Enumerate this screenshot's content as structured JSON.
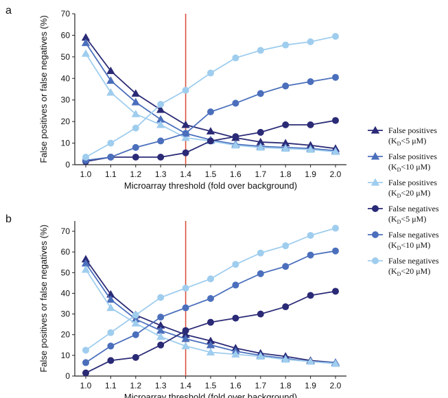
{
  "colors": {
    "dark": "#2a2a76",
    "mid": "#4b6fbc",
    "light": "#9fcdee",
    "threshold_line": "#d9503c",
    "axis": "#222222"
  },
  "legend": {
    "items": [
      {
        "marker": "triangle",
        "color_key": "dark",
        "line1": "False positives",
        "line2_prefix": "(K",
        "line2_sub": "D",
        "line2_suffix": "<5 μM)"
      },
      {
        "marker": "triangle",
        "color_key": "mid",
        "line1": "False positives",
        "line2_prefix": "(K",
        "line2_sub": "D",
        "line2_suffix": "<10 μM)"
      },
      {
        "marker": "triangle",
        "color_key": "light",
        "line1": "False positives",
        "line2_prefix": "(K",
        "line2_sub": "D",
        "line2_suffix": "<20 μM)"
      },
      {
        "marker": "circle",
        "color_key": "dark",
        "line1": "False negatives",
        "line2_prefix": "(K",
        "line2_sub": "D",
        "line2_suffix": "<5 μM)"
      },
      {
        "marker": "circle",
        "color_key": "mid",
        "line1": "False negatives",
        "line2_prefix": "(K",
        "line2_sub": "D",
        "line2_suffix": "<10 μM)"
      },
      {
        "marker": "circle",
        "color_key": "light",
        "line1": "False negatives",
        "line2_prefix": "(K",
        "line2_sub": "D",
        "line2_suffix": "<20 μM)"
      }
    ]
  },
  "chart_data": [
    {
      "panel_label": "a",
      "type": "line",
      "xlabel": "Microarray threshold (fold over background)",
      "ylabel": "False positives or false negatives (%)",
      "x": [
        1.0,
        1.1,
        1.2,
        1.3,
        1.4,
        1.5,
        1.6,
        1.7,
        1.8,
        1.9,
        2.0
      ],
      "x_ticks": [
        "1.0",
        "1.1",
        "1.2",
        "1.3",
        "1.4",
        "1.5",
        "1.6",
        "1.7",
        "1.8",
        "1.9",
        "2.0"
      ],
      "ylim": [
        0,
        70
      ],
      "y_ticks": [
        0,
        10,
        20,
        30,
        40,
        50,
        60,
        70
      ],
      "threshold_x": 1.4,
      "series": [
        {
          "name": "False positives (KD<5 μM)",
          "marker": "triangle",
          "color_key": "dark",
          "values": [
            59,
            43.5,
            33,
            25.5,
            18.5,
            15.5,
            12.5,
            10.5,
            10,
            9,
            7.5
          ]
        },
        {
          "name": "False positives (KD<10 μM)",
          "marker": "triangle",
          "color_key": "mid",
          "values": [
            56.5,
            39,
            29,
            21,
            14.5,
            11.5,
            9.5,
            8.5,
            8,
            7.5,
            6.5
          ]
        },
        {
          "name": "False positives (KD<20 μM)",
          "marker": "triangle",
          "color_key": "light",
          "values": [
            51.5,
            33.5,
            23.5,
            18.5,
            12.5,
            11,
            9,
            8,
            7.5,
            7,
            6
          ]
        },
        {
          "name": "False negatives (KD<5 μM)",
          "marker": "circle",
          "color_key": "dark",
          "values": [
            1.5,
            3.5,
            3.5,
            3.5,
            5.5,
            11,
            13,
            15,
            18.5,
            18.5,
            20.5
          ]
        },
        {
          "name": "False negatives (KD<10 μM)",
          "marker": "circle",
          "color_key": "mid",
          "values": [
            2,
            3.5,
            8,
            11,
            14.5,
            24.5,
            28.5,
            33,
            36.5,
            38.5,
            40.5
          ]
        },
        {
          "name": "False negatives (KD<20 μM)",
          "marker": "circle",
          "color_key": "light",
          "values": [
            3.5,
            10,
            17,
            28,
            34.5,
            42.5,
            49.5,
            53,
            55.5,
            57,
            59.5
          ]
        }
      ]
    },
    {
      "panel_label": "b",
      "type": "line",
      "xlabel": "Microarray threshold (fold over background)",
      "ylabel": "False positives or false negatives (%)",
      "x": [
        1.0,
        1.1,
        1.2,
        1.3,
        1.4,
        1.5,
        1.6,
        1.7,
        1.8,
        1.9,
        2.0
      ],
      "x_ticks": [
        "1.0",
        "1.1",
        "1.2",
        "1.3",
        "1.4",
        "1.5",
        "1.6",
        "1.7",
        "1.8",
        "1.9",
        "2.0"
      ],
      "ylim": [
        0,
        75
      ],
      "y_ticks": [
        0,
        10,
        20,
        30,
        40,
        50,
        60,
        70
      ],
      "threshold_x": 1.4,
      "series": [
        {
          "name": "False positives (KD<5 μM)",
          "marker": "triangle",
          "color_key": "dark",
          "values": [
            56.5,
            39.5,
            29.5,
            24.5,
            20,
            17,
            13.5,
            11,
            9.5,
            7.5,
            6.5
          ]
        },
        {
          "name": "False positives (KD<10 μM)",
          "marker": "triangle",
          "color_key": "mid",
          "values": [
            54.5,
            37,
            27.5,
            22,
            18,
            15,
            12,
            10,
            8.5,
            7,
            6.5
          ]
        },
        {
          "name": "False positives (KD<20 μM)",
          "marker": "triangle",
          "color_key": "light",
          "values": [
            51.5,
            33,
            25.5,
            19,
            14.5,
            11.5,
            10.5,
            9.5,
            8,
            7,
            6
          ]
        },
        {
          "name": "False negatives (KD<5 μM)",
          "marker": "circle",
          "color_key": "dark",
          "values": [
            1.5,
            7.5,
            9,
            15,
            22,
            26,
            28,
            30,
            33.5,
            39,
            41
          ]
        },
        {
          "name": "False negatives (KD<10 μM)",
          "marker": "circle",
          "color_key": "mid",
          "values": [
            6.5,
            14.5,
            20,
            28.5,
            33,
            37.5,
            44,
            49.5,
            53,
            58.5,
            60.5
          ]
        },
        {
          "name": "False negatives (KD<20 μM)",
          "marker": "circle",
          "color_key": "light",
          "values": [
            12.5,
            21,
            29.5,
            38,
            42.5,
            47,
            54,
            59.5,
            63,
            68,
            71.5
          ]
        }
      ]
    }
  ]
}
